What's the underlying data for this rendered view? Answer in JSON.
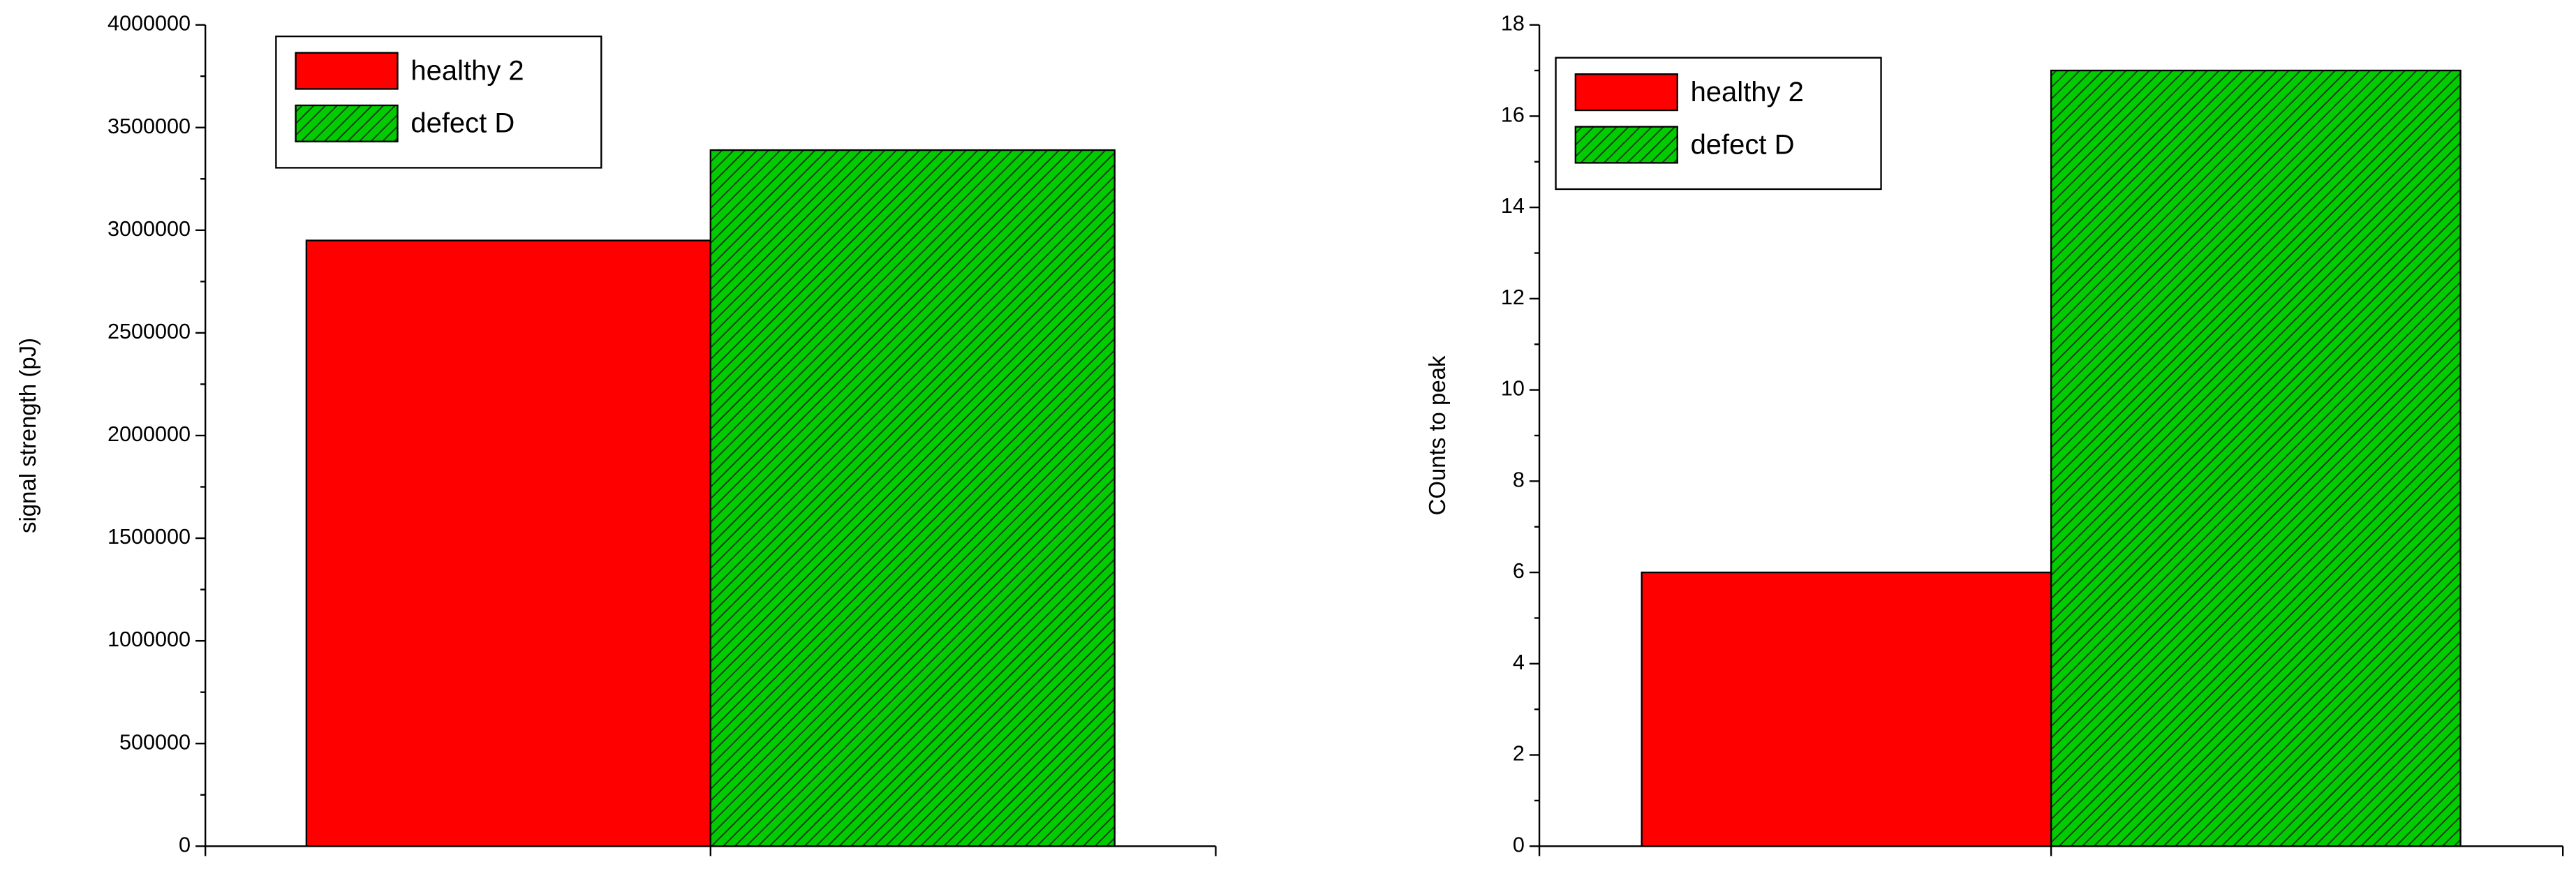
{
  "chart_data": [
    {
      "type": "bar",
      "y_label": "signal strength (pJ)",
      "categories": [
        null
      ],
      "series": [
        {
          "name": "healthy 2",
          "color": "#ff0000",
          "values": [
            2950000
          ]
        },
        {
          "name": "defect D",
          "color": "#00cc00",
          "hatch": true,
          "values": [
            3390000
          ]
        }
      ],
      "ylim": [
        0,
        4000000
      ],
      "yticks": [
        0,
        500000,
        1000000,
        1500000,
        2000000,
        2500000,
        3000000,
        3500000,
        4000000
      ],
      "legend": "upper left"
    },
    {
      "type": "bar",
      "y_label": "COunts to peak",
      "categories": [
        null
      ],
      "series": [
        {
          "name": "healthy 2",
          "color": "#ff0000",
          "values": [
            6
          ]
        },
        {
          "name": "defect D",
          "color": "#00cc00",
          "hatch": true,
          "values": [
            17
          ]
        }
      ],
      "ylim": [
        0,
        18
      ],
      "yticks": [
        0,
        2,
        4,
        6,
        8,
        10,
        12,
        14,
        16,
        18
      ],
      "legend": "upper left"
    }
  ]
}
